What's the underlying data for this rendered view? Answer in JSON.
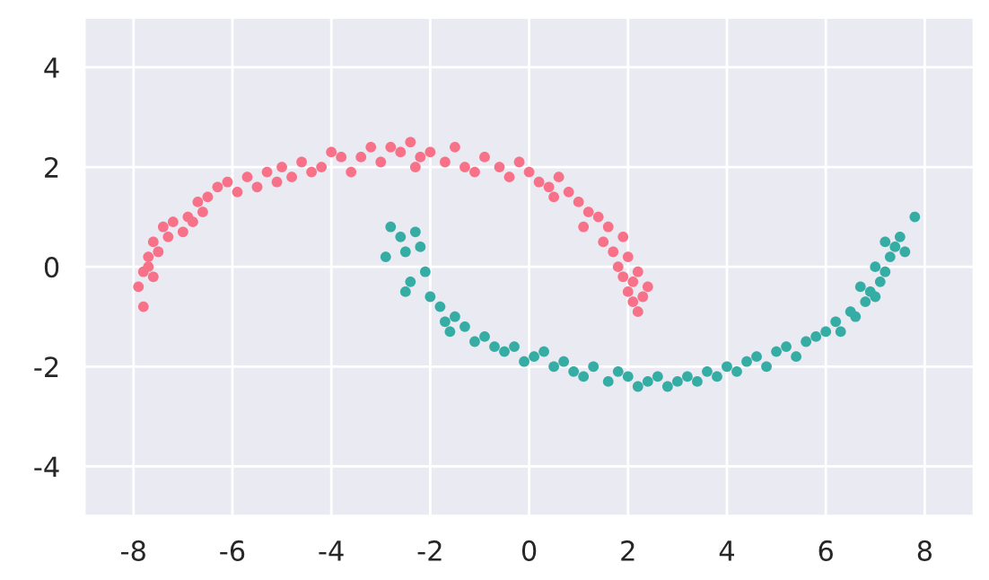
{
  "chart_data": {
    "type": "scatter",
    "xlim": [
      -9,
      9
    ],
    "ylim": [
      -5,
      5
    ],
    "xticks": [
      -8,
      -6,
      -4,
      -2,
      0,
      2,
      4,
      6,
      8
    ],
    "yticks": [
      -4,
      -2,
      0,
      2,
      4
    ],
    "grid": true,
    "marker": "circle",
    "series": [
      {
        "color": "#f77189",
        "x": [
          -7.9,
          -7.8,
          -7.7,
          -7.8,
          -7.6,
          -7.5,
          -7.6,
          -7.4,
          -7.7,
          -7.3,
          -7.2,
          -7.0,
          -6.9,
          -6.7,
          -6.8,
          -6.5,
          -6.3,
          -6.6,
          -6.1,
          -5.9,
          -5.7,
          -5.5,
          -5.3,
          -5.1,
          -5.0,
          -4.8,
          -4.6,
          -4.4,
          -4.2,
          -4.0,
          -3.8,
          -3.6,
          -3.4,
          -3.2,
          -3.0,
          -2.8,
          -2.6,
          -2.4,
          -2.2,
          -2.0,
          -2.3,
          -1.7,
          -1.5,
          -1.3,
          -1.1,
          -0.9,
          -0.6,
          -0.4,
          -0.2,
          0.0,
          0.2,
          0.4,
          0.6,
          0.5,
          0.8,
          1.0,
          1.2,
          1.1,
          1.4,
          1.6,
          1.5,
          1.7,
          1.9,
          1.8,
          2.0,
          2.1,
          2.2,
          2.0,
          2.3,
          2.4,
          2.2,
          2.1,
          1.9
        ],
        "values": [
          -0.4,
          -0.1,
          0.2,
          -0.8,
          0.5,
          0.3,
          -0.2,
          0.8,
          0.0,
          0.6,
          0.9,
          0.7,
          1.0,
          1.3,
          0.9,
          1.4,
          1.6,
          1.1,
          1.7,
          1.5,
          1.8,
          1.6,
          1.9,
          1.7,
          2.0,
          1.8,
          2.1,
          1.9,
          2.0,
          2.3,
          2.2,
          1.9,
          2.2,
          2.4,
          2.1,
          2.4,
          2.3,
          2.5,
          2.2,
          2.3,
          2.0,
          2.1,
          2.4,
          2.0,
          1.9,
          2.2,
          2.0,
          1.8,
          2.1,
          1.9,
          1.7,
          1.6,
          1.8,
          1.4,
          1.5,
          1.3,
          1.1,
          0.8,
          1.0,
          0.8,
          0.5,
          0.3,
          0.6,
          0.0,
          0.2,
          -0.3,
          -0.1,
          -0.5,
          -0.6,
          -0.4,
          -0.9,
          -0.7,
          -0.2
        ]
      },
      {
        "color": "#36ada4",
        "x": [
          -2.8,
          -2.6,
          -2.5,
          -2.9,
          -2.3,
          -2.2,
          -2.5,
          -2.1,
          -2.0,
          -2.4,
          -1.8,
          -1.7,
          -1.5,
          -1.6,
          -1.3,
          -1.1,
          -0.9,
          -0.7,
          -0.5,
          -0.3,
          -0.1,
          0.1,
          0.3,
          0.5,
          0.7,
          0.9,
          1.1,
          1.3,
          1.6,
          1.8,
          2.0,
          2.2,
          2.4,
          2.6,
          2.8,
          3.0,
          3.2,
          3.4,
          3.6,
          3.8,
          4.0,
          4.2,
          4.4,
          4.6,
          4.8,
          5.0,
          5.2,
          5.4,
          5.6,
          5.8,
          6.0,
          6.2,
          6.3,
          6.5,
          6.6,
          6.8,
          6.9,
          7.0,
          7.1,
          7.2,
          7.3,
          7.2,
          7.4,
          7.5,
          7.6,
          7.8,
          7.0,
          6.7
        ],
        "values": [
          0.8,
          0.6,
          0.3,
          0.2,
          0.7,
          0.4,
          -0.5,
          -0.1,
          -0.6,
          -0.3,
          -0.8,
          -1.1,
          -1.0,
          -1.3,
          -1.2,
          -1.5,
          -1.4,
          -1.6,
          -1.7,
          -1.6,
          -1.9,
          -1.8,
          -1.7,
          -2.0,
          -1.9,
          -2.1,
          -2.2,
          -2.0,
          -2.3,
          -2.1,
          -2.2,
          -2.4,
          -2.3,
          -2.2,
          -2.4,
          -2.3,
          -2.2,
          -2.3,
          -2.1,
          -2.2,
          -2.0,
          -2.1,
          -1.9,
          -1.8,
          -2.0,
          -1.7,
          -1.6,
          -1.8,
          -1.5,
          -1.4,
          -1.3,
          -1.1,
          -1.3,
          -0.9,
          -1.0,
          -0.7,
          -0.5,
          -0.6,
          -0.3,
          -0.1,
          0.2,
          0.5,
          0.4,
          0.6,
          0.3,
          1.0,
          0.0,
          -0.4
        ]
      }
    ]
  }
}
